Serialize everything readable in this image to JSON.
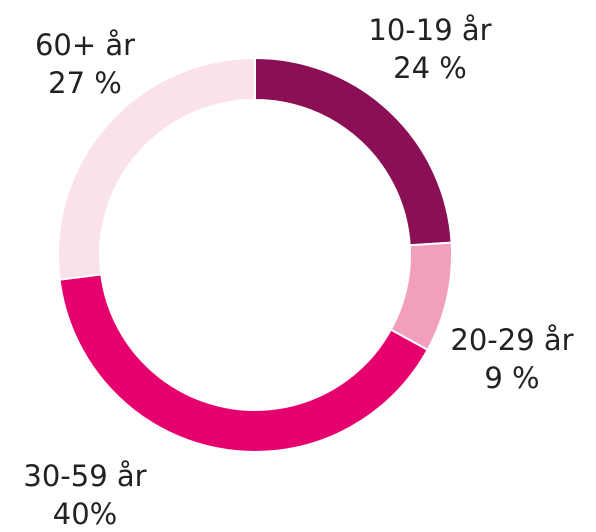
{
  "chart_data": {
    "type": "donut",
    "categories": [
      "10-19 år",
      "20-29 år",
      "30-59 år",
      "60+ år"
    ],
    "values": [
      24,
      9,
      40,
      27
    ],
    "value_labels": [
      "24 %",
      "9 %",
      "40%",
      "27 %"
    ],
    "colors": [
      "#8a0f55",
      "#f29fbd",
      "#e6006e",
      "#fbe1ea"
    ]
  }
}
